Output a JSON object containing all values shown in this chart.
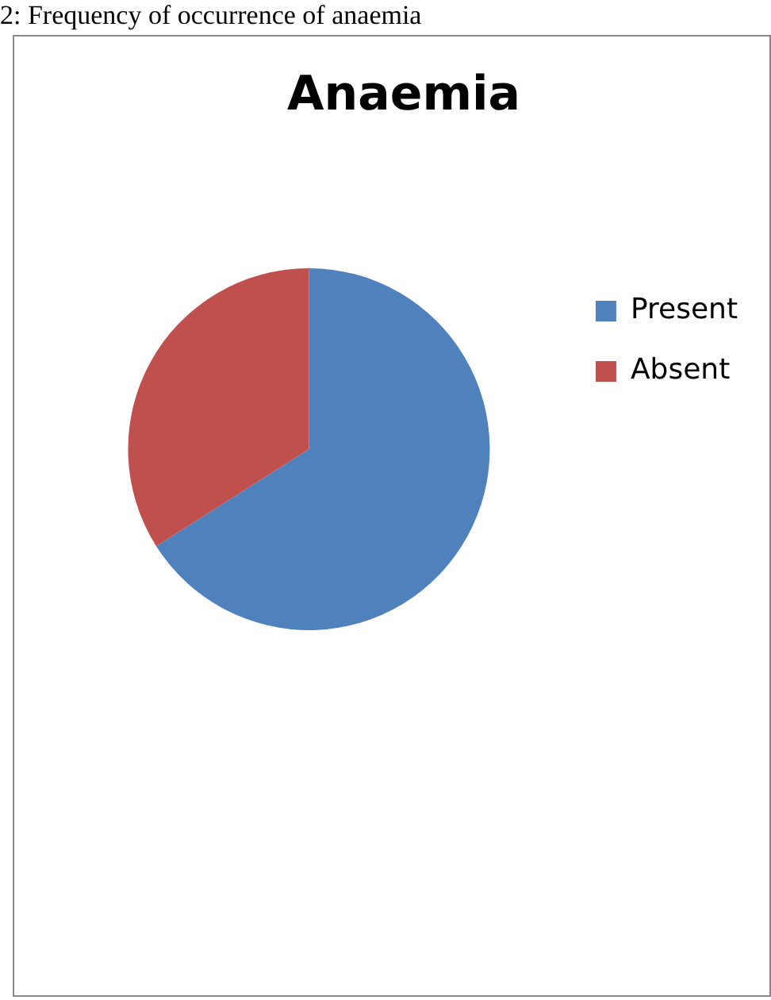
{
  "chart_data": {
    "type": "pie",
    "title": "Anaemia",
    "annotations": [
      "2: Frequency of occurrence of anaemia"
    ],
    "categories": [
      "Present",
      "Absent"
    ],
    "values": [
      66,
      34
    ],
    "colors": [
      "#4f81bd",
      "#c0504d"
    ],
    "legend": "right"
  }
}
